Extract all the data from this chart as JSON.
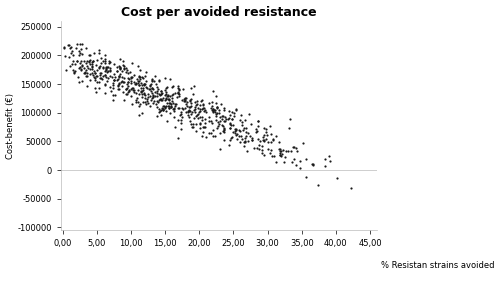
{
  "title": "Cost per avoided resistance",
  "xlabel": "% Resistan strains avoided",
  "ylabel": "Cost-benefit (€)",
  "xlim": [
    -0.3,
    46
  ],
  "ylim": [
    -105000,
    260000
  ],
  "xticks": [
    0,
    5,
    10,
    15,
    20,
    25,
    30,
    35,
    40,
    45
  ],
  "yticks": [
    -100000,
    -50000,
    0,
    50000,
    100000,
    150000,
    200000,
    250000
  ],
  "marker_color": "#1a1a1a",
  "marker_size": 2.5,
  "background_color": "#ffffff",
  "n_points": 700,
  "seed": 42,
  "title_fontsize": 9,
  "axis_label_fontsize": 6,
  "tick_fontsize": 6,
  "slope": -5000,
  "intercept": 200000,
  "noise_std": 18000,
  "x_beta_a": 1.5,
  "x_beta_b": 2.5,
  "x_scale": 43
}
